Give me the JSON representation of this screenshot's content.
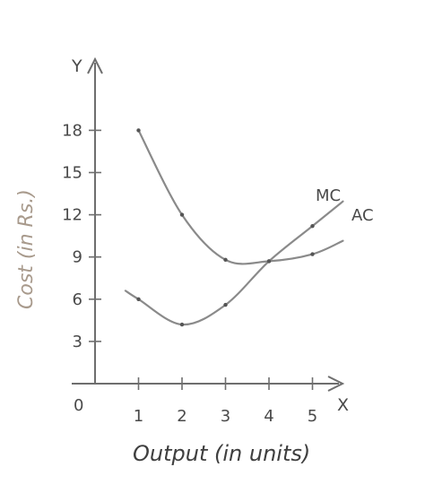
{
  "chart_data": {
    "type": "line",
    "xlabel": "Output (in units)",
    "ylabel": "Cost (in Rs.)",
    "x_axis_letter": "X",
    "y_axis_letter": "Y",
    "origin_label": "0",
    "x_ticks": [
      1,
      2,
      3,
      4,
      5
    ],
    "y_ticks": [
      3,
      6,
      9,
      12,
      15,
      18
    ],
    "xlim": [
      0,
      5.6
    ],
    "ylim": [
      0,
      20.5
    ],
    "series": [
      {
        "name": "AC",
        "color": "#8a8a8a",
        "points": [
          [
            1,
            18
          ],
          [
            2,
            12
          ],
          [
            3,
            8.8
          ],
          [
            4,
            8.7
          ],
          [
            5,
            9.2
          ]
        ]
      },
      {
        "name": "MC",
        "color": "#8a8a8a",
        "points": [
          [
            1,
            6
          ],
          [
            2,
            4.2
          ],
          [
            3,
            5.6
          ],
          [
            4,
            8.7
          ],
          [
            5,
            11.2
          ]
        ]
      }
    ]
  }
}
